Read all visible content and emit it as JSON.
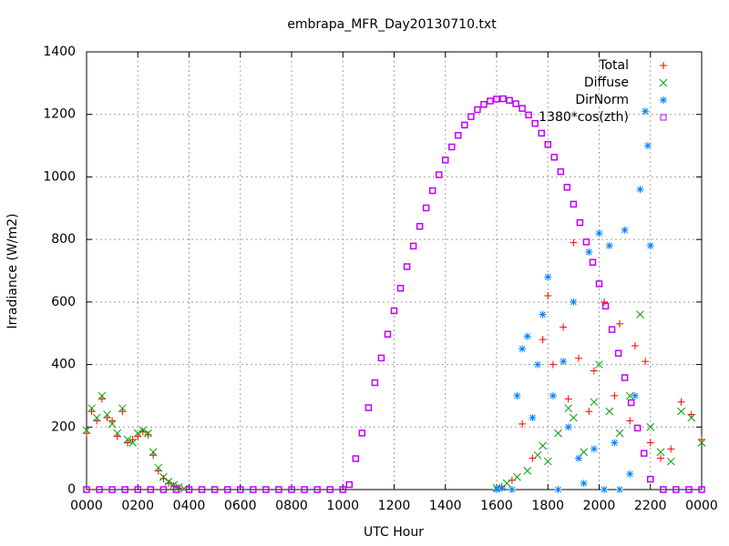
{
  "chart_data": {
    "type": "scatter",
    "title": "embrapa_MFR_Day20130710.txt",
    "xlabel": "UTC Hour",
    "ylabel": "Irradiance (W/m2)",
    "xlim": [
      0,
      24
    ],
    "ylim": [
      0,
      1400
    ],
    "xticks": [
      {
        "value": 0,
        "label": "0000"
      },
      {
        "value": 2,
        "label": "0200"
      },
      {
        "value": 4,
        "label": "0400"
      },
      {
        "value": 6,
        "label": "0600"
      },
      {
        "value": 8,
        "label": "0800"
      },
      {
        "value": 10,
        "label": "1000"
      },
      {
        "value": 12,
        "label": "1200"
      },
      {
        "value": 14,
        "label": "1400"
      },
      {
        "value": 16,
        "label": "1600"
      },
      {
        "value": 18,
        "label": "1800"
      },
      {
        "value": 20,
        "label": "2000"
      },
      {
        "value": 22,
        "label": "2200"
      },
      {
        "value": 24,
        "label": "0000"
      }
    ],
    "yticks": [
      0,
      200,
      400,
      600,
      800,
      1000,
      1200,
      1400
    ],
    "grid": true,
    "legend": "top-right",
    "series": [
      {
        "name": "Total",
        "color": "#ff0000",
        "marker": "plus",
        "x": [
          0,
          0.2,
          0.4,
          0.6,
          0.8,
          1.0,
          1.2,
          1.4,
          1.6,
          1.8,
          2.0,
          2.2,
          2.4,
          2.6,
          2.8,
          3.0,
          3.2,
          3.4,
          3.6,
          16.2,
          16.6,
          17.0,
          17.4,
          17.8,
          18.0,
          18.2,
          18.6,
          18.8,
          19.0,
          19.2,
          19.6,
          19.8,
          20.2,
          20.6,
          20.8,
          21.2,
          21.4,
          21.8,
          22.0,
          22.4,
          22.8,
          23.2,
          23.6,
          24.0
        ],
        "values": [
          180,
          250,
          220,
          290,
          230,
          220,
          170,
          250,
          150,
          160,
          170,
          185,
          175,
          110,
          60,
          35,
          20,
          12,
          5,
          10,
          30,
          210,
          100,
          480,
          620,
          400,
          520,
          290,
          790,
          420,
          250,
          380,
          600,
          300,
          530,
          220,
          460,
          410,
          150,
          100,
          130,
          280,
          240,
          160
        ]
      },
      {
        "name": "Diffuse",
        "color": "#00a000",
        "marker": "cross",
        "x": [
          0,
          0.2,
          0.4,
          0.6,
          0.8,
          1.0,
          1.2,
          1.4,
          1.6,
          1.8,
          2.0,
          2.2,
          2.4,
          2.6,
          2.8,
          3.0,
          3.2,
          3.4,
          3.6,
          3.8,
          16.0,
          16.4,
          16.8,
          17.2,
          17.6,
          17.8,
          18.0,
          18.4,
          18.8,
          19.0,
          19.4,
          19.8,
          20.0,
          20.4,
          20.8,
          21.2,
          21.6,
          22.0,
          22.4,
          22.8,
          23.2,
          23.6,
          24.0
        ],
        "values": [
          190,
          260,
          230,
          300,
          240,
          210,
          180,
          260,
          160,
          150,
          180,
          190,
          180,
          120,
          70,
          40,
          25,
          15,
          8,
          3,
          5,
          20,
          40,
          60,
          110,
          140,
          90,
          180,
          260,
          230,
          120,
          280,
          400,
          250,
          180,
          300,
          560,
          200,
          120,
          90,
          250,
          230,
          150
        ]
      },
      {
        "name": "DirNorm",
        "color": "#0080ff",
        "marker": "star",
        "x": [
          16.0,
          16.2,
          16.6,
          16.8,
          17.0,
          17.2,
          17.4,
          17.6,
          17.8,
          18.0,
          18.2,
          18.4,
          18.6,
          18.8,
          19.0,
          19.2,
          19.4,
          19.6,
          19.8,
          20.0,
          20.2,
          20.4,
          20.6,
          20.8,
          21.0,
          21.2,
          21.4,
          21.6,
          21.8,
          21.9,
          22.0
        ],
        "values": [
          0,
          5,
          0,
          300,
          450,
          490,
          230,
          400,
          560,
          680,
          300,
          0,
          410,
          200,
          600,
          100,
          20,
          760,
          130,
          820,
          0,
          780,
          150,
          0,
          830,
          50,
          300,
          960,
          1210,
          1100,
          780
        ]
      },
      {
        "name": "1380*cos(zth)",
        "color": "#c000ff",
        "marker": "square",
        "x": [
          0,
          0.5,
          1,
          1.5,
          2,
          2.5,
          3,
          3.5,
          4,
          4.5,
          5,
          5.5,
          6,
          6.5,
          7,
          7.5,
          8,
          8.5,
          9,
          9.5,
          10,
          10.25,
          10.5,
          10.75,
          11,
          11.25,
          11.5,
          11.75,
          12,
          12.25,
          12.5,
          12.75,
          13,
          13.25,
          13.5,
          13.75,
          14,
          14.25,
          14.5,
          14.75,
          15,
          15.25,
          15.5,
          15.75,
          16,
          16.25,
          16.5,
          16.75,
          17,
          17.25,
          17.5,
          17.75,
          18,
          18.25,
          18.5,
          18.75,
          19,
          19.25,
          19.5,
          19.75,
          20,
          20.25,
          20.5,
          20.75,
          21,
          21.25,
          21.5,
          21.75,
          22,
          22.5,
          23,
          23.5,
          24
        ],
        "values": [
          0,
          0,
          0,
          0,
          0,
          0,
          0,
          0,
          0,
          0,
          0,
          0,
          0,
          0,
          0,
          0,
          0,
          0,
          0,
          0,
          0,
          16,
          99,
          181,
          262,
          342,
          421,
          497,
          572,
          644,
          713,
          779,
          842,
          901,
          956,
          1007,
          1054,
          1096,
          1133,
          1166,
          1193,
          1215,
          1232,
          1243,
          1249,
          1250,
          1245,
          1234,
          1219,
          1198,
          1171,
          1140,
          1104,
          1063,
          1017,
          967,
          913,
          854,
          792,
          727,
          658,
          587,
          512,
          436,
          358,
          278,
          197,
          116,
          33,
          0,
          0,
          0,
          0
        ]
      }
    ]
  }
}
